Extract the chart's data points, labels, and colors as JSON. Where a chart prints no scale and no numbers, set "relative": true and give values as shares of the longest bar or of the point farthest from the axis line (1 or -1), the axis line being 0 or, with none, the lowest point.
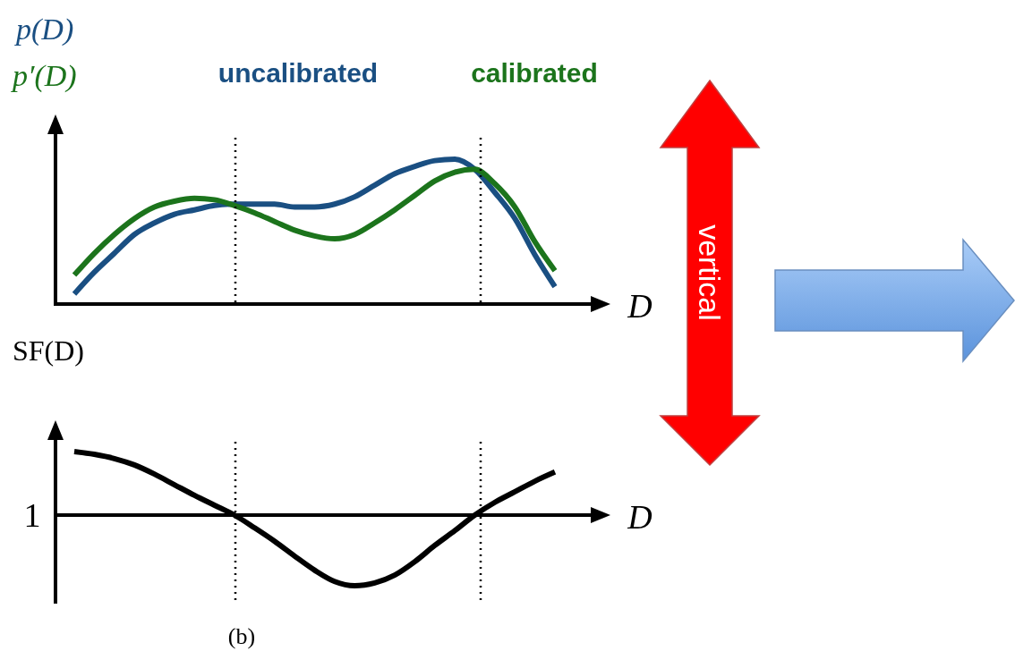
{
  "chart_data": [
    {
      "type": "line",
      "relative": true,
      "categories": [
        null,
        null,
        null,
        null,
        null,
        null,
        null,
        null,
        null,
        null,
        null,
        null,
        null,
        null,
        null,
        null,
        null,
        null,
        null,
        null,
        null,
        null,
        null,
        null,
        null
      ],
      "series": [
        {
          "name": "uncalibrated",
          "color": "#1a4f82",
          "values": [
            0.07,
            0.22,
            0.35,
            0.48,
            0.56,
            0.62,
            0.65,
            0.68,
            0.69,
            0.69,
            0.69,
            0.67,
            0.67,
            0.69,
            0.74,
            0.82,
            0.9,
            0.95,
            0.99,
            1.0,
            0.93,
            0.77,
            0.59,
            0.34,
            0.12
          ]
        },
        {
          "name": "calibrated",
          "color": "#1c741c",
          "values": [
            0.2,
            0.35,
            0.48,
            0.59,
            0.67,
            0.71,
            0.73,
            0.72,
            0.68,
            0.63,
            0.57,
            0.51,
            0.47,
            0.45,
            0.48,
            0.56,
            0.65,
            0.75,
            0.85,
            0.91,
            0.93,
            0.83,
            0.67,
            0.43,
            0.23
          ]
        }
      ],
      "ylabel": "p(D)",
      "xlabel": "D",
      "legend": "top",
      "annotations": [
        "p′(D)",
        "vertical"
      ]
    },
    {
      "type": "line",
      "relative": true,
      "categories": [
        null,
        null,
        null,
        null,
        null,
        null,
        null,
        null,
        null,
        null,
        null,
        null,
        null,
        null,
        null,
        null,
        null,
        null,
        null,
        null,
        null,
        null,
        null,
        null,
        null
      ],
      "values": [
        0.9,
        0.86,
        0.8,
        0.71,
        0.58,
        0.43,
        0.28,
        0.14,
        0,
        -0.18,
        -0.37,
        -0.58,
        -0.78,
        -0.94,
        -1,
        -0.96,
        -0.85,
        -0.66,
        -0.43,
        -0.22,
        0,
        0.18,
        0.33,
        0.48,
        0.61
      ],
      "color": "#000000",
      "ylabel": "SF(D)",
      "xlabel": "D",
      "annotations": [
        "1",
        "(b)"
      ]
    }
  ]
}
